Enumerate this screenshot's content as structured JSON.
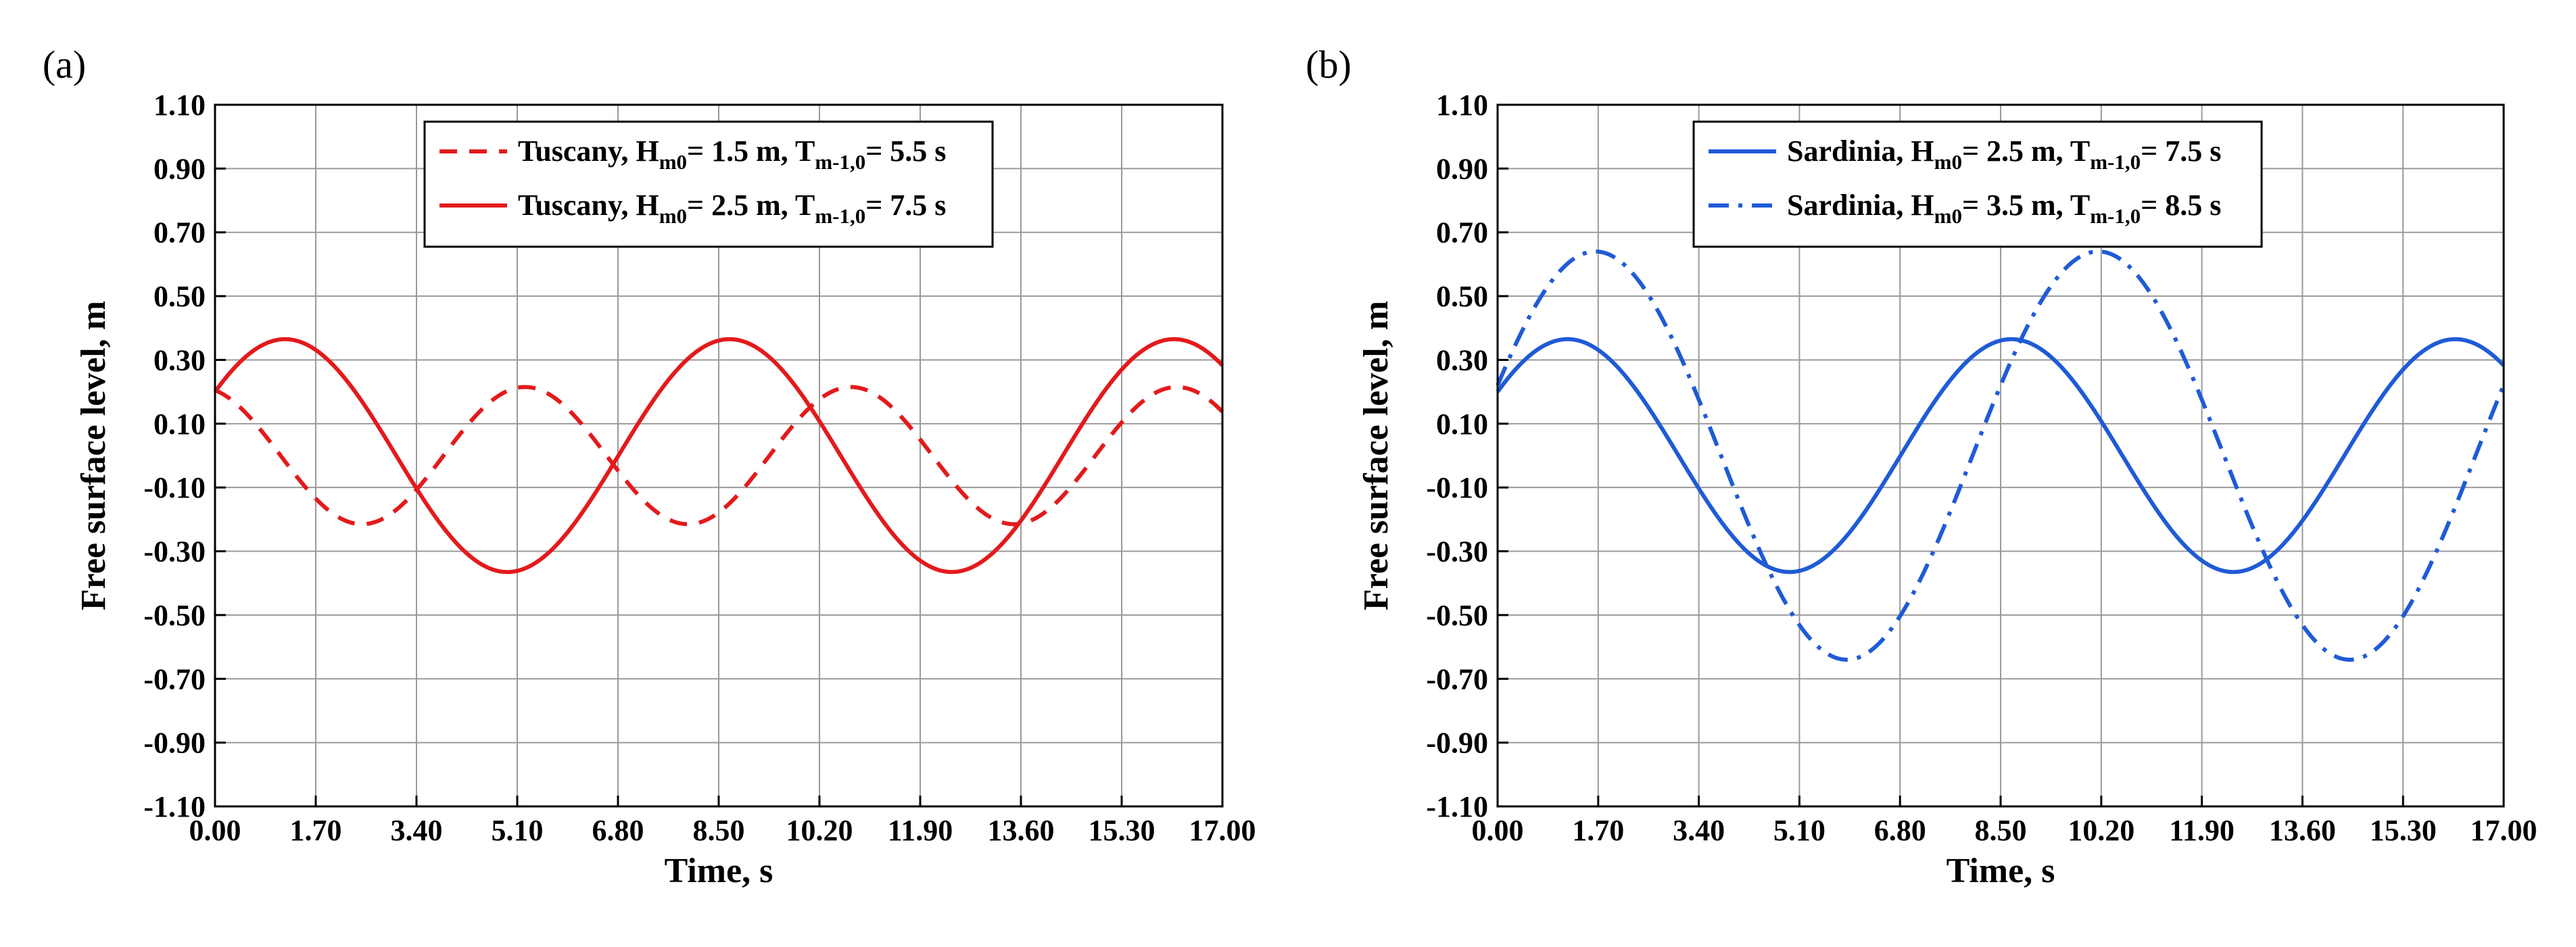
{
  "chart_data": [
    {
      "panel_label": "(a)",
      "type": "line",
      "xlabel": "Time, s",
      "ylabel": "Free surface level, m",
      "xlim": [
        0,
        17
      ],
      "ylim": [
        -1.1,
        1.1
      ],
      "xticks": [
        "0.00",
        "1.70",
        "3.40",
        "5.10",
        "6.80",
        "8.50",
        "10.20",
        "11.90",
        "13.60",
        "15.30",
        "17.00"
      ],
      "yticks": [
        "1.10",
        "0.90",
        "0.70",
        "0.50",
        "0.30",
        "0.10",
        "-0.10",
        "-0.30",
        "-0.50",
        "-0.70",
        "-0.90",
        "-1.10"
      ],
      "grid": true,
      "legend_position": "top-center",
      "series": [
        {
          "name": "Tuscany, Hm0= 1.5 m, Tm-1,0= 5.5 s",
          "legend_parts": {
            "region": "Tuscany, H",
            "h_sub": "m0",
            "h_val": "= 1.5 m, T",
            "t_sub": "m-1,0",
            "t_val": "= 5.5 s"
          },
          "color": "#e31a1c",
          "dash": "dashed",
          "amplitude": 0.215,
          "period": 5.5,
          "initial_value": 0.205,
          "peaks_x": [
            0,
            5.5,
            11.0,
            16.5
          ],
          "troughs_x": [
            2.75,
            8.25,
            13.75
          ]
        },
        {
          "name": "Tuscany, Hm0= 2.5 m, Tm-1,0= 7.5 s",
          "legend_parts": {
            "region": "Tuscany, H",
            "h_sub": "m0",
            "h_val": "= 2.5 m, T",
            "t_sub": "m-1,0",
            "t_val": "= 7.5 s"
          },
          "color": "#e31a1c",
          "dash": "solid",
          "amplitude": 0.365,
          "period": 7.5,
          "initial_value": 0.2,
          "peaks_x": [
            1.3,
            8.8,
            16.3
          ],
          "troughs_x": [
            5.05,
            12.55
          ]
        }
      ]
    },
    {
      "panel_label": "(b)",
      "type": "line",
      "xlabel": "Time, s",
      "ylabel": "Free surface level, m",
      "xlim": [
        0,
        17
      ],
      "ylim": [
        -1.1,
        1.1
      ],
      "xticks": [
        "0.00",
        "1.70",
        "3.40",
        "5.10",
        "6.80",
        "8.50",
        "10.20",
        "11.90",
        "13.60",
        "15.30",
        "17.00"
      ],
      "yticks": [
        "1.10",
        "0.90",
        "0.70",
        "0.50",
        "0.30",
        "0.10",
        "-0.10",
        "-0.30",
        "-0.50",
        "-0.70",
        "-0.90",
        "-1.10"
      ],
      "grid": true,
      "legend_position": "top-center",
      "series": [
        {
          "name": "Sardinia, Hm0= 2.5 m, Tm-1,0= 7.5 s",
          "legend_parts": {
            "region": "Sardinia, H",
            "h_sub": "m0",
            "h_val": "= 2.5 m, T",
            "t_sub": "m-1,0",
            "t_val": "= 7.5 s"
          },
          "color": "#1f5bd6",
          "dash": "solid",
          "amplitude": 0.365,
          "period": 7.5,
          "initial_value": 0.2,
          "peaks_x": [
            1.3,
            8.8,
            16.3
          ],
          "troughs_x": [
            5.05,
            12.55
          ]
        },
        {
          "name": "Sardinia, Hm0= 3.5 m, Tm-1,0= 8.5 s",
          "legend_parts": {
            "region": "Sardinia, H",
            "h_sub": "m0",
            "h_val": "= 3.5 m, T",
            "t_sub": "m-1,0",
            "t_val": "= 8.5 s"
          },
          "color": "#1f5bd6",
          "dash": "dashdot",
          "amplitude": 0.64,
          "period": 8.5,
          "initial_value": 0.22,
          "peaks_x": [
            1.7,
            10.2
          ],
          "troughs_x": [
            5.95,
            14.45
          ]
        }
      ]
    }
  ]
}
